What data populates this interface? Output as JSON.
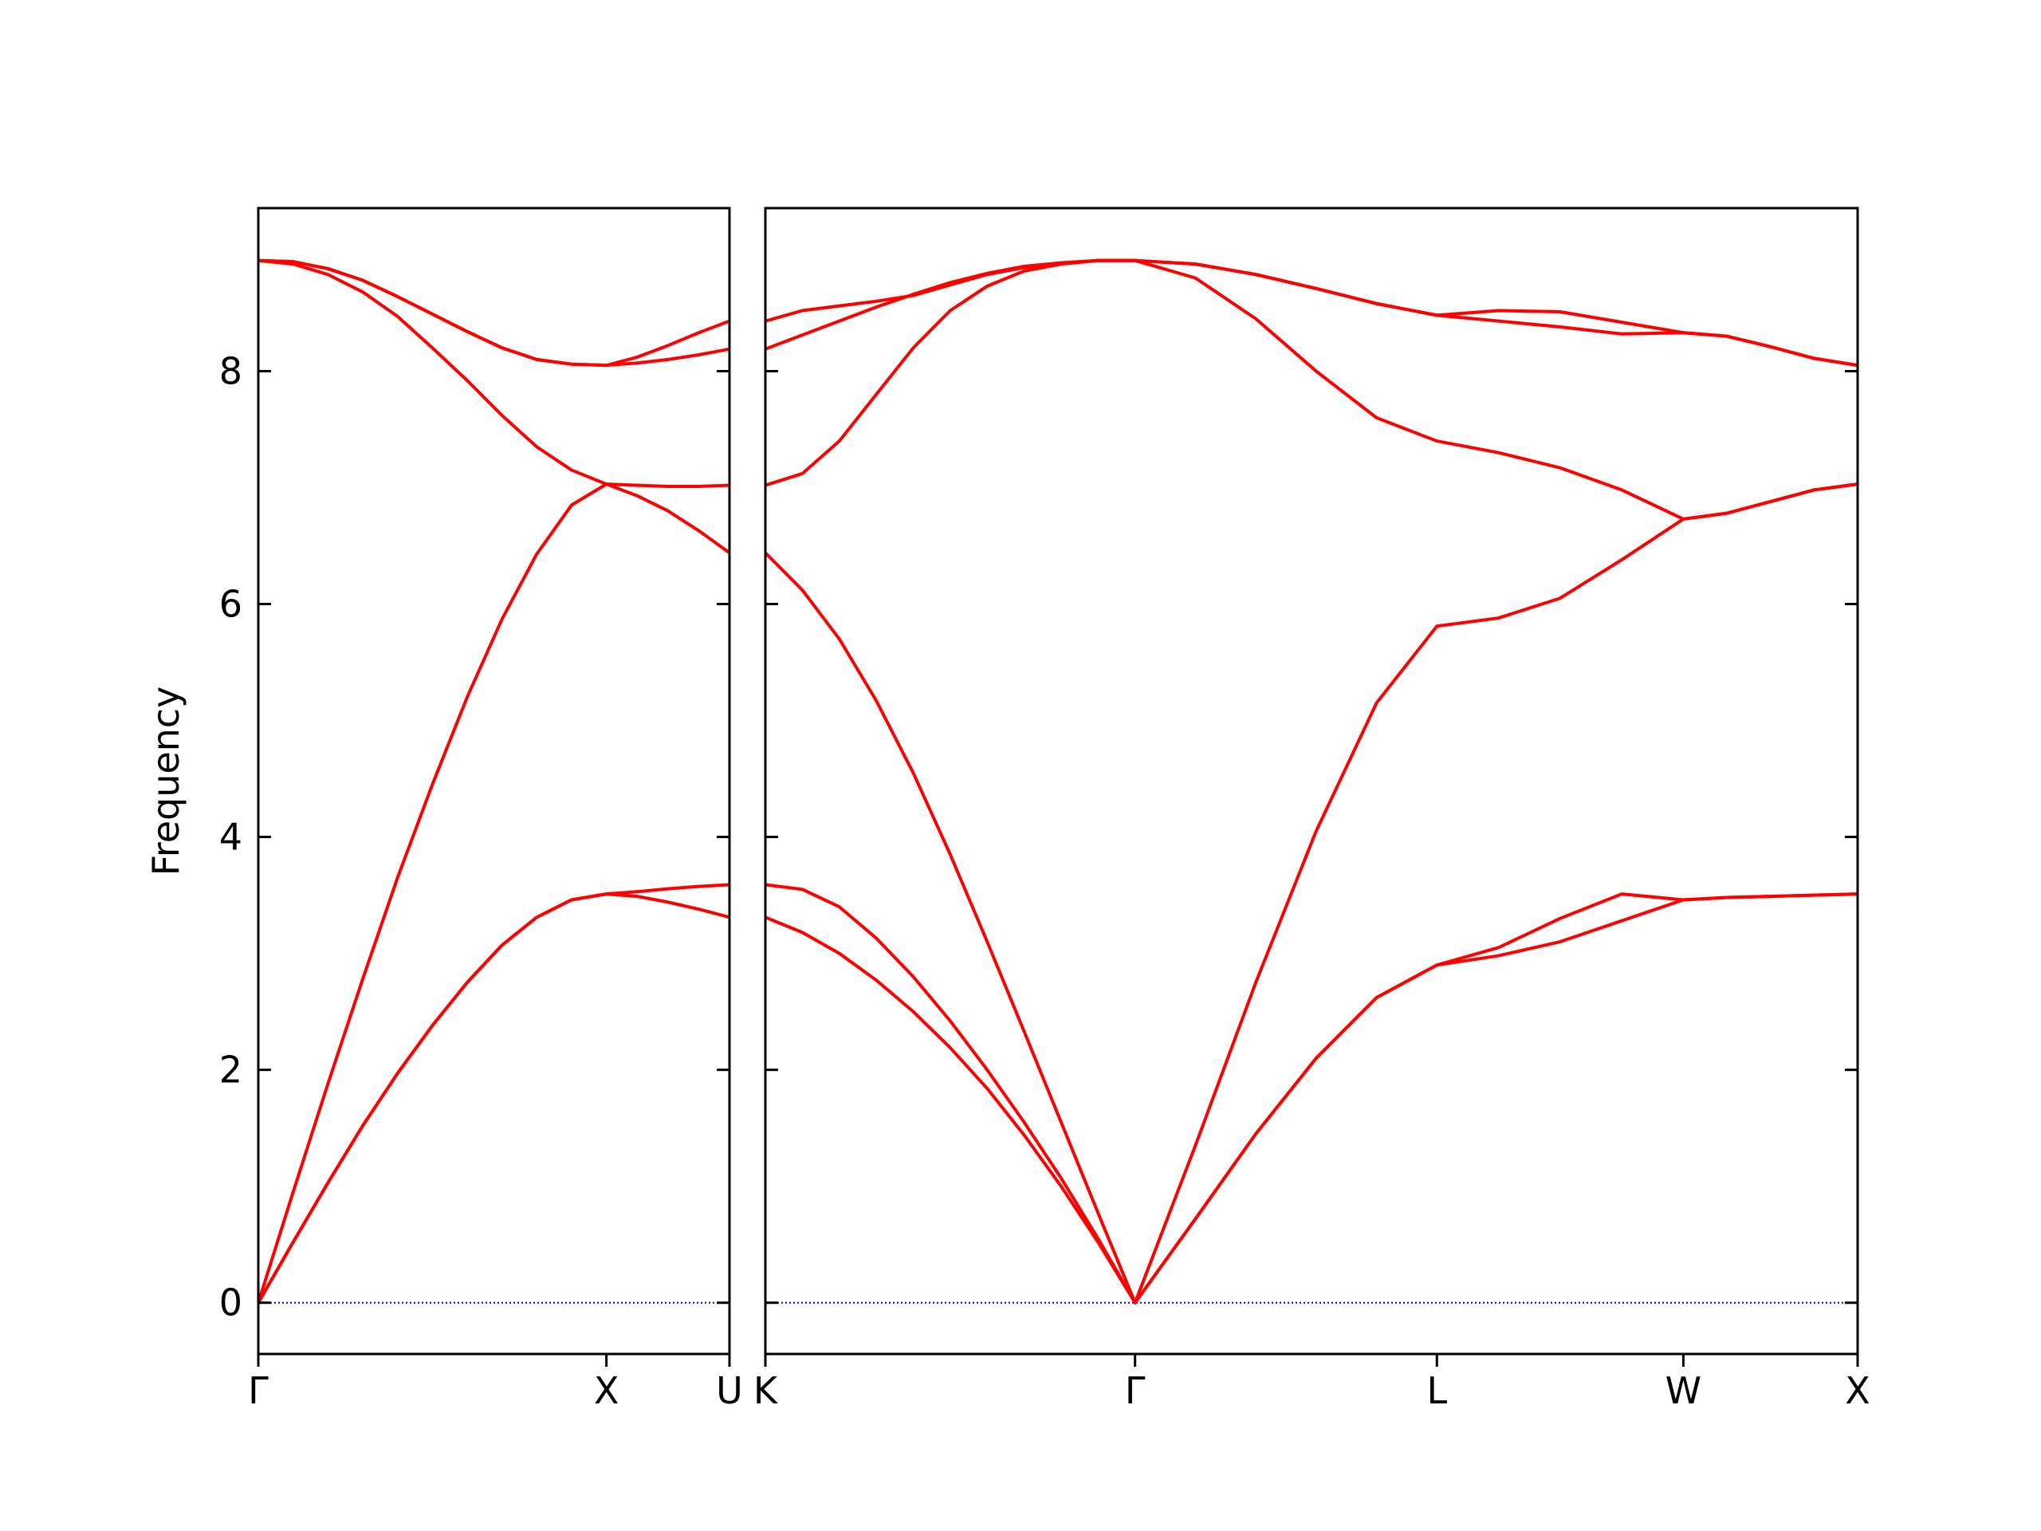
{
  "chart_data": [
    {
      "type": "line",
      "ylabel": "Frequency",
      "x": [
        0,
        0.1,
        0.2,
        0.3,
        0.4,
        0.5,
        0.6,
        0.7,
        0.8,
        0.9,
        1.0,
        1.0884,
        1.1768,
        1.2652,
        1.3536
      ],
      "xlim": [
        0,
        1.3536
      ],
      "xticks": [
        {
          "value": 0,
          "label": "Γ"
        },
        {
          "value": 1.0,
          "label": "X"
        },
        {
          "value": 1.3536,
          "label": "U"
        }
      ],
      "ylim": [
        -0.44,
        9.4
      ],
      "yticks": [
        0,
        2,
        4,
        6,
        8
      ],
      "show_ytick_labels": true,
      "hline": 0,
      "hline_color": "#0000cc",
      "series": [
        {
          "color": "#ff0000",
          "values": [
            0,
            0.52,
            1.03,
            1.52,
            1.97,
            2.38,
            2.75,
            3.07,
            3.31,
            3.46,
            3.51,
            3.49,
            3.44,
            3.38,
            3.31
          ]
        },
        {
          "color": "#ff0000",
          "values": [
            0,
            0.52,
            1.03,
            1.52,
            1.97,
            2.38,
            2.75,
            3.07,
            3.31,
            3.46,
            3.51,
            3.53,
            3.555,
            3.575,
            3.59
          ]
        },
        {
          "color": "#ff0000",
          "values": [
            0,
            0.95,
            1.88,
            2.78,
            3.65,
            4.45,
            5.2,
            5.87,
            6.43,
            6.85,
            7.03,
            7.02,
            7.01,
            7.01,
            7.02
          ]
        },
        {
          "color": "#ff0000",
          "values": [
            8.95,
            8.92,
            8.83,
            8.68,
            8.47,
            8.2,
            7.92,
            7.62,
            7.35,
            7.15,
            7.03,
            6.93,
            6.8,
            6.63,
            6.44
          ]
        },
        {
          "color": "#ff0000",
          "values": [
            8.95,
            8.94,
            8.88,
            8.78,
            8.64,
            8.49,
            8.34,
            8.2,
            8.1,
            8.06,
            8.05,
            8.07,
            8.1,
            8.14,
            8.19
          ]
        },
        {
          "color": "#ff0000",
          "values": [
            8.95,
            8.94,
            8.88,
            8.78,
            8.64,
            8.49,
            8.34,
            8.2,
            8.1,
            8.06,
            8.05,
            8.12,
            8.22,
            8.33,
            8.43
          ]
        }
      ]
    },
    {
      "type": "line",
      "x": [
        1.3536,
        1.4597,
        1.5657,
        1.6718,
        1.7779,
        1.8839,
        1.99,
        2.096,
        2.2021,
        2.3082,
        2.4142,
        2.5874,
        2.7606,
        2.9338,
        3.107,
        3.2802,
        3.457,
        3.6337,
        3.8105,
        3.9873,
        4.1123,
        4.2373,
        4.3623,
        4.4873
      ],
      "xlim": [
        1.3536,
        4.4873
      ],
      "xticks": [
        {
          "value": 1.3536,
          "label": "K"
        },
        {
          "value": 2.4142,
          "label": "Γ"
        },
        {
          "value": 3.2802,
          "label": "L"
        },
        {
          "value": 3.9873,
          "label": "W"
        },
        {
          "value": 4.4873,
          "label": "X"
        }
      ],
      "ylim": [
        -0.44,
        9.4
      ],
      "yticks": [
        0,
        2,
        4,
        6,
        8
      ],
      "show_ytick_labels": false,
      "hline": 0,
      "hline_color": "#0000cc",
      "series": [
        {
          "color": "#ff0000",
          "values": [
            3.31,
            3.18,
            3.0,
            2.77,
            2.5,
            2.19,
            1.84,
            1.44,
            1.0,
            0.52,
            0,
            0.72,
            1.45,
            2.1,
            2.62,
            2.9,
            2.98,
            3.1,
            3.28,
            3.46,
            3.48,
            3.49,
            3.5,
            3.51
          ]
        },
        {
          "color": "#ff0000",
          "values": [
            3.59,
            3.55,
            3.4,
            3.13,
            2.8,
            2.42,
            2.0,
            1.55,
            1.07,
            0.55,
            0,
            0.72,
            1.45,
            2.1,
            2.62,
            2.9,
            3.05,
            3.3,
            3.51,
            3.46,
            3.48,
            3.49,
            3.5,
            3.51
          ]
        },
        {
          "color": "#ff0000",
          "values": [
            6.44,
            6.12,
            5.7,
            5.17,
            4.55,
            3.85,
            3.1,
            2.33,
            1.55,
            0.77,
            0,
            1.35,
            2.75,
            4.05,
            5.15,
            5.81,
            5.88,
            6.05,
            6.38,
            6.73,
            6.78,
            6.88,
            6.98,
            7.03
          ]
        },
        {
          "color": "#ff0000",
          "values": [
            7.02,
            7.12,
            7.4,
            7.8,
            8.2,
            8.52,
            8.73,
            8.86,
            8.92,
            8.95,
            8.95,
            8.8,
            8.45,
            8.0,
            7.6,
            7.4,
            7.3,
            7.17,
            6.98,
            6.73,
            6.78,
            6.88,
            6.98,
            7.03
          ]
        },
        {
          "color": "#ff0000",
          "values": [
            8.19,
            8.31,
            8.43,
            8.55,
            8.66,
            8.76,
            8.84,
            8.9,
            8.93,
            8.95,
            8.95,
            8.92,
            8.83,
            8.71,
            8.58,
            8.48,
            8.43,
            8.38,
            8.32,
            8.33,
            8.3,
            8.21,
            8.11,
            8.05
          ]
        },
        {
          "color": "#ff0000",
          "values": [
            8.43,
            8.52,
            8.56,
            8.6,
            8.65,
            8.74,
            8.83,
            8.89,
            8.93,
            8.95,
            8.95,
            8.92,
            8.83,
            8.71,
            8.58,
            8.48,
            8.52,
            8.51,
            8.42,
            8.33,
            8.3,
            8.21,
            8.11,
            8.05
          ]
        }
      ]
    }
  ]
}
